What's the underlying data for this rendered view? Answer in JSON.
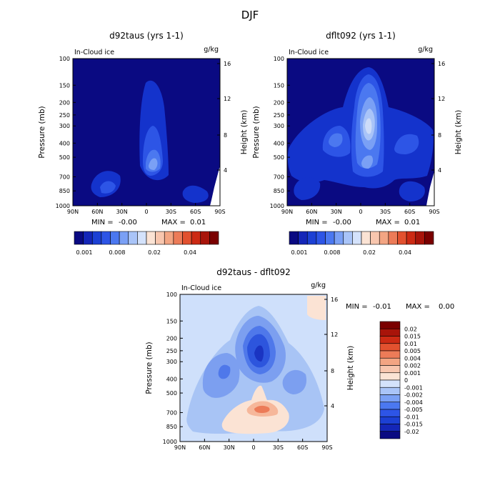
{
  "chart_data": {
    "type": "heatmap",
    "title": "DJF",
    "latitude_ticks": [
      "90N",
      "60N",
      "30N",
      "0",
      "30S",
      "60S",
      "90S"
    ],
    "pressure_ticks": [
      "100",
      "150",
      "200",
      "250",
      "300",
      "400",
      "500",
      "700",
      "850",
      "1000"
    ],
    "height_ticks": [
      "16",
      "12",
      "8",
      "4"
    ],
    "ylabel": "Pressure (mb)",
    "ylabel_right": "Height (km)",
    "panels": [
      {
        "id": "d92taus",
        "title": "d92taus (yrs 1-1)",
        "variable": "In-Cloud ice",
        "units": "g/kg",
        "min_text": "MIN =",
        "min_value": "-0.00",
        "max_text": "MAX =",
        "max_value": "0.01",
        "colorbar_labels": [
          "0.001",
          "0.008",
          "0.02",
          "0.04"
        ],
        "features": [
          {
            "lat": 0,
            "pressure": 500,
            "value": 0.006,
            "note": "deep tropical maximum"
          },
          {
            "lat": 5,
            "pressure": 200,
            "value": 0.003
          },
          {
            "lat": 55,
            "pressure": 700,
            "value": 0.003
          },
          {
            "lat": -65,
            "pressure": 850,
            "value": 0.002
          }
        ]
      },
      {
        "id": "dflt092",
        "title": "dflt092 (yrs 1-1)",
        "variable": "In-Cloud ice",
        "units": "g/kg",
        "min_text": "MIN =",
        "min_value": "-0.00",
        "max_text": "MAX =",
        "max_value": "0.01",
        "colorbar_labels": [
          "0.001",
          "0.008",
          "0.02",
          "0.04"
        ],
        "features": [
          {
            "lat": -5,
            "pressure": 280,
            "value": 0.009,
            "note": "upper tropical maximum"
          },
          {
            "lat": -5,
            "pressure": 500,
            "value": 0.006
          },
          {
            "lat": 50,
            "pressure": 300,
            "value": 0.003
          },
          {
            "lat": -50,
            "pressure": 300,
            "value": 0.002
          },
          {
            "lat": 60,
            "pressure": 700,
            "value": 0.003
          }
        ]
      },
      {
        "id": "difference",
        "title": "d92taus - dflt092",
        "variable": "In-Cloud ice",
        "units": "g/kg",
        "min_text": "MIN =",
        "min_value": "-0.01",
        "max_text": "MAX =",
        "max_value": "0.00",
        "colorbar_labels": [
          "0.02",
          "0.015",
          "0.01",
          "0.005",
          "0.004",
          "0.002",
          "0.001",
          "0",
          "-0.001",
          "-0.002",
          "-0.004",
          "-0.005",
          "-0.01",
          "-0.015",
          "-0.02"
        ],
        "features": [
          {
            "lat": -5,
            "pressure": 250,
            "value": -0.007,
            "note": "upper tropical deficit"
          },
          {
            "lat": 45,
            "pressure": 350,
            "value": -0.003
          },
          {
            "lat": -45,
            "pressure": 400,
            "value": -0.002
          },
          {
            "lat": -10,
            "pressure": 650,
            "value": 0.004,
            "note": "lower tropical excess"
          },
          {
            "lat": -75,
            "pressure": 110,
            "value": 0.001
          }
        ]
      }
    ]
  }
}
